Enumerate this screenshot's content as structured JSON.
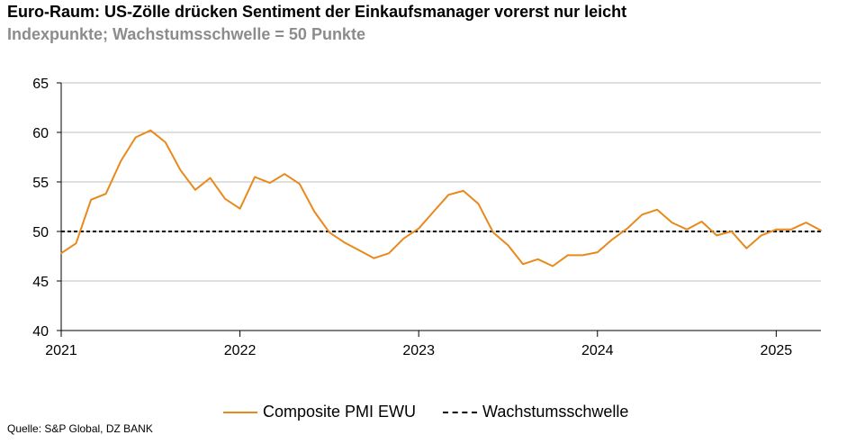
{
  "header": {
    "title": "Euro-Raum: US-Zölle drücken Sentiment der Einkaufsmanager vorerst nur leicht",
    "subtitle": "Indexpunkte; Wachstumsschwelle = 50 Punkte"
  },
  "footer": {
    "source": "Quelle: S&P Global, DZ BANK"
  },
  "colors": {
    "series": "#e8891c",
    "threshold": "#000000",
    "grid": "#bfbfbf"
  },
  "chart_data": {
    "type": "line",
    "xlabel": "",
    "ylabel": "",
    "ylim": [
      40,
      65
    ],
    "yticks": [
      "40",
      "45",
      "50",
      "55",
      "60",
      "65"
    ],
    "xlim": [
      "2021-01",
      "2025-04"
    ],
    "xticks": [
      "2021",
      "2022",
      "2023",
      "2024",
      "2025"
    ],
    "grid": true,
    "legend_position": "bottom",
    "series": [
      {
        "name": "Composite PMI EWU",
        "color": "#e8891c",
        "x": [
          "2021-01",
          "2021-02",
          "2021-03",
          "2021-04",
          "2021-05",
          "2021-06",
          "2021-07",
          "2021-08",
          "2021-09",
          "2021-10",
          "2021-11",
          "2021-12",
          "2022-01",
          "2022-02",
          "2022-03",
          "2022-04",
          "2022-05",
          "2022-06",
          "2022-07",
          "2022-08",
          "2022-09",
          "2022-10",
          "2022-11",
          "2022-12",
          "2023-01",
          "2023-02",
          "2023-03",
          "2023-04",
          "2023-05",
          "2023-06",
          "2023-07",
          "2023-08",
          "2023-09",
          "2023-10",
          "2023-11",
          "2023-12",
          "2024-01",
          "2024-02",
          "2024-03",
          "2024-04",
          "2024-05",
          "2024-06",
          "2024-07",
          "2024-08",
          "2024-09",
          "2024-10",
          "2024-11",
          "2024-12",
          "2025-01",
          "2025-02",
          "2025-03",
          "2025-04"
        ],
        "values": [
          47.8,
          48.8,
          53.2,
          53.8,
          57.1,
          59.5,
          60.2,
          59.0,
          56.2,
          54.2,
          55.4,
          53.3,
          52.3,
          55.5,
          54.9,
          55.8,
          54.8,
          52.0,
          49.9,
          48.9,
          48.1,
          47.3,
          47.8,
          49.3,
          50.3,
          52.0,
          53.7,
          54.1,
          52.8,
          49.9,
          48.6,
          46.7,
          47.2,
          46.5,
          47.6,
          47.6,
          47.9,
          49.2,
          50.3,
          51.7,
          52.2,
          50.9,
          50.2,
          51.0,
          49.6,
          50.0,
          48.3,
          49.6,
          50.2,
          50.2,
          50.9,
          50.1
        ]
      },
      {
        "name": "Wachstumsschwelle",
        "color": "#000000",
        "style": "dashed",
        "constant": 50
      }
    ]
  }
}
